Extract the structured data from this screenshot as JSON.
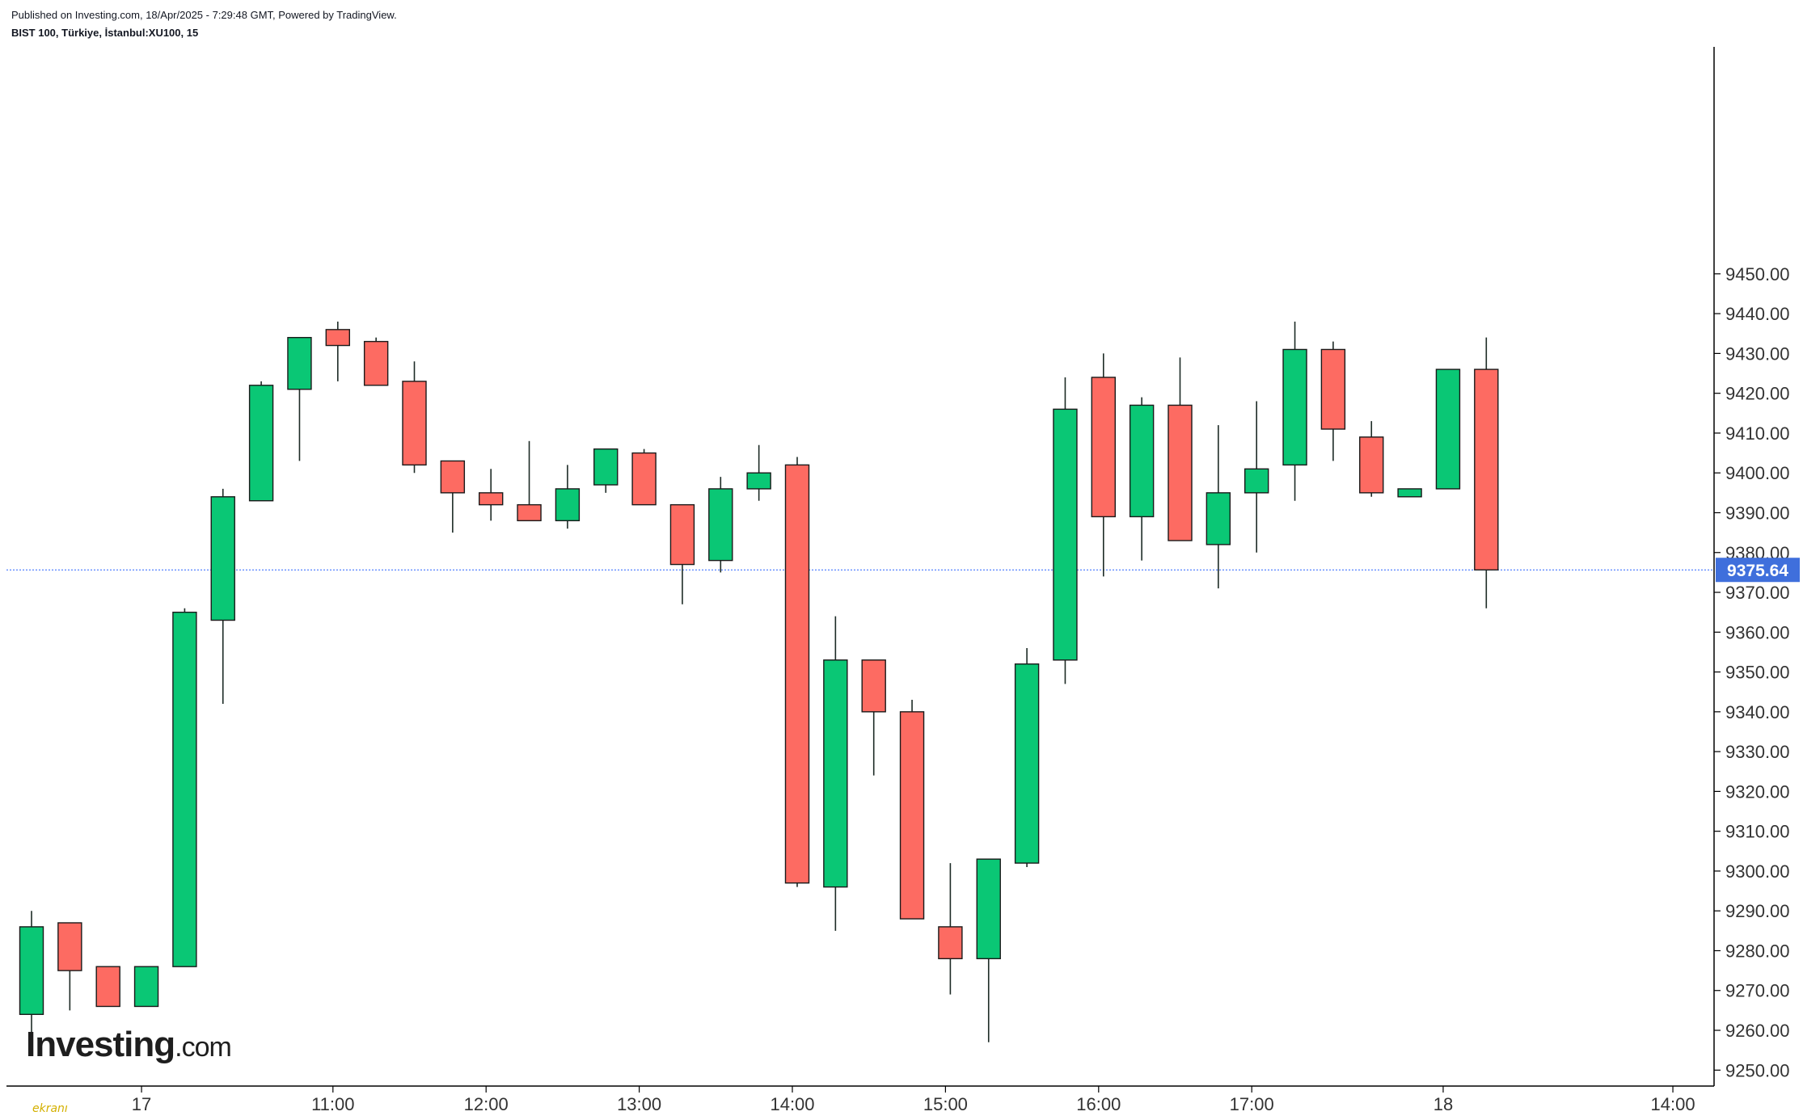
{
  "header": {
    "published": "Published on Investing.com, 18/Apr/2025 - 7:29:48 GMT, Powered by TradingView.",
    "symbol": "BIST 100, Türkiye, İstanbul:XU100, 15"
  },
  "logo": {
    "main": "Investing",
    "suffix": ".com"
  },
  "watermark": "ekranı",
  "colors": {
    "up": "#0ac775",
    "down": "#fd6b62",
    "wick": "#1d2b26",
    "last_price_line": "#2962ff",
    "last_price_badge": "#3f6fdc"
  },
  "chart_data": {
    "type": "candlestick",
    "yaxis": {
      "ylim": [
        9246,
        9507
      ],
      "ticks": [
        "9250.00",
        "9260.00",
        "9270.00",
        "9280.00",
        "9290.00",
        "9300.00",
        "9310.00",
        "9320.00",
        "9330.00",
        "9340.00",
        "9350.00",
        "9360.00",
        "9370.00",
        "9380.00",
        "9390.00",
        "9400.00",
        "9410.00",
        "9420.00",
        "9430.00",
        "9440.00",
        "9450.00"
      ],
      "position": "right"
    },
    "xaxis": {
      "ticks": [
        {
          "label": "17",
          "index": 3
        },
        {
          "label": "11:00",
          "index": 8
        },
        {
          "label": "12:00",
          "index": 12
        },
        {
          "label": "13:00",
          "index": 16
        },
        {
          "label": "14:00",
          "index": 20
        },
        {
          "label": "15:00",
          "index": 24
        },
        {
          "label": "16:00",
          "index": 28
        },
        {
          "label": "17:00",
          "index": 32
        },
        {
          "label": "18",
          "index": 37
        },
        {
          "label": "14:00",
          "index": 43
        }
      ]
    },
    "last_price": 9375.64,
    "last_price_label": "9375.64",
    "candles": [
      {
        "o": 9264,
        "h": 9290,
        "l": 9258,
        "c": 9286
      },
      {
        "o": 9287,
        "h": 9287,
        "l": 9265,
        "c": 9275
      },
      {
        "o": 9276,
        "h": 9276,
        "l": 9266,
        "c": 9266
      },
      {
        "o": 9266,
        "h": 9276,
        "l": 9266,
        "c": 9276
      },
      {
        "o": 9276,
        "h": 9366,
        "l": 9276,
        "c": 9365
      },
      {
        "o": 9363,
        "h": 9396,
        "l": 9342,
        "c": 9394
      },
      {
        "o": 9393,
        "h": 9423,
        "l": 9393,
        "c": 9422
      },
      {
        "o": 9421,
        "h": 9434,
        "l": 9403,
        "c": 9434
      },
      {
        "o": 9436,
        "h": 9438,
        "l": 9423,
        "c": 9432
      },
      {
        "o": 9433,
        "h": 9434,
        "l": 9422,
        "c": 9422
      },
      {
        "o": 9423,
        "h": 9428,
        "l": 9400,
        "c": 9402
      },
      {
        "o": 9403,
        "h": 9403,
        "l": 9385,
        "c": 9395
      },
      {
        "o": 9395,
        "h": 9401,
        "l": 9388,
        "c": 9392
      },
      {
        "o": 9392,
        "h": 9408,
        "l": 9388,
        "c": 9388
      },
      {
        "o": 9388,
        "h": 9402,
        "l": 9386,
        "c": 9396
      },
      {
        "o": 9397,
        "h": 9406,
        "l": 9395,
        "c": 9406
      },
      {
        "o": 9405,
        "h": 9406,
        "l": 9392,
        "c": 9392
      },
      {
        "o": 9392,
        "h": 9392,
        "l": 9367,
        "c": 9377
      },
      {
        "o": 9378,
        "h": 9399,
        "l": 9375,
        "c": 9396
      },
      {
        "o": 9396,
        "h": 9407,
        "l": 9393,
        "c": 9400
      },
      {
        "o": 9402,
        "h": 9404,
        "l": 9296,
        "c": 9297
      },
      {
        "o": 9296,
        "h": 9364,
        "l": 9285,
        "c": 9353
      },
      {
        "o": 9353,
        "h": 9353,
        "l": 9324,
        "c": 9340
      },
      {
        "o": 9340,
        "h": 9343,
        "l": 9288,
        "c": 9288
      },
      {
        "o": 9286,
        "h": 9302,
        "l": 9269,
        "c": 9278
      },
      {
        "o": 9278,
        "h": 9303,
        "l": 9257,
        "c": 9303
      },
      {
        "o": 9302,
        "h": 9356,
        "l": 9301,
        "c": 9352
      },
      {
        "o": 9353,
        "h": 9424,
        "l": 9347,
        "c": 9416
      },
      {
        "o": 9424,
        "h": 9430,
        "l": 9374,
        "c": 9389
      },
      {
        "o": 9389,
        "h": 9419,
        "l": 9378,
        "c": 9417
      },
      {
        "o": 9417,
        "h": 9429,
        "l": 9383,
        "c": 9383
      },
      {
        "o": 9382,
        "h": 9412,
        "l": 9371,
        "c": 9395
      },
      {
        "o": 9395,
        "h": 9418,
        "l": 9380,
        "c": 9401
      },
      {
        "o": 9402,
        "h": 9438,
        "l": 9393,
        "c": 9431
      },
      {
        "o": 9431,
        "h": 9433,
        "l": 9403,
        "c": 9411
      },
      {
        "o": 9409,
        "h": 9413,
        "l": 9394,
        "c": 9395
      },
      {
        "o": 9394,
        "h": 9396,
        "l": 9394,
        "c": 9396
      },
      {
        "o": 9396,
        "h": 9426,
        "l": 9396,
        "c": 9426
      },
      {
        "o": 9426,
        "h": 9434,
        "l": 9366,
        "c": 9375.64
      }
    ]
  }
}
